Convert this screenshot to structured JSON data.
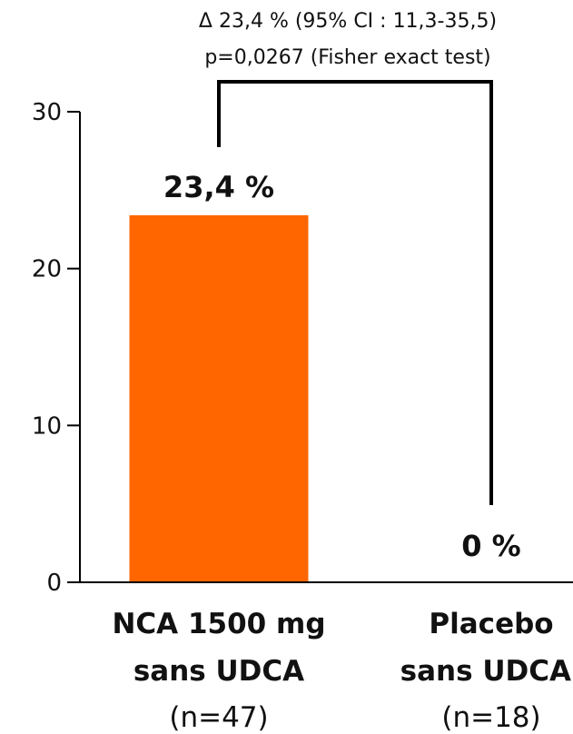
{
  "chart_data": {
    "type": "bar",
    "categories": [
      {
        "lines": [
          "NCA 1500 mg",
          "sans UDCA"
        ],
        "n": "(n=47)"
      },
      {
        "lines": [
          "Placebo",
          "sans UDCA"
        ],
        "n": "(n=18)"
      }
    ],
    "values": [
      23.4,
      0
    ],
    "value_labels": [
      "23,4 %",
      "0 %"
    ],
    "ylim": [
      0,
      30
    ],
    "yticks": [
      0,
      10,
      20,
      30
    ],
    "ytick_labels": [
      "0",
      "10",
      "20",
      "30"
    ],
    "title": "",
    "xlabel": "",
    "ylabel": "",
    "grid": false,
    "bar_color": "#ff6600",
    "annotation": {
      "lines": [
        "Δ 23,4 % (95% CI : 11,3-35,5)",
        "p=0,0267 (Fisher exact test)"
      ]
    }
  }
}
